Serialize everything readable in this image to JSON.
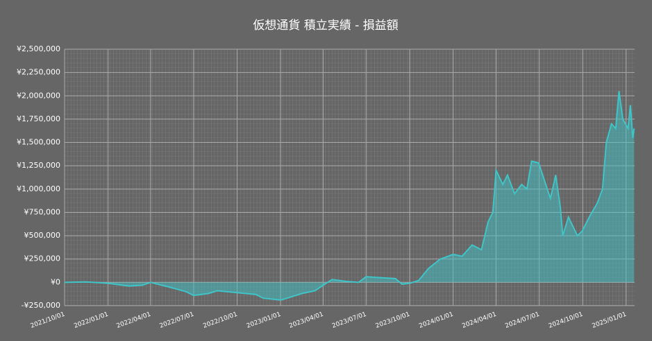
{
  "chart_data": {
    "type": "area",
    "title": "仮想通貨 積立実績 - 損益額",
    "x": [
      "2021/10/01",
      "2021/11/15",
      "2022/01/01",
      "2022/02/15",
      "2022/03/15",
      "2022/04/01",
      "2022/05/10",
      "2022/06/15",
      "2022/07/01",
      "2022/08/01",
      "2022/08/20",
      "2022/10/01",
      "2022/11/10",
      "2022/11/25",
      "2023/01/01",
      "2023/01/15",
      "2023/02/15",
      "2023/03/15",
      "2023/04/01",
      "2023/04/20",
      "2023/05/20",
      "2023/06/15",
      "2023/07/01",
      "2023/08/01",
      "2023/09/01",
      "2023/09/15",
      "2023/10/01",
      "2023/10/20",
      "2023/11/10",
      "2023/12/05",
      "2024/01/01",
      "2024/01/20",
      "2024/02/10",
      "2024/03/01",
      "2024/03/15",
      "2024/03/25",
      "2024/04/01",
      "2024/04/15",
      "2024/04/25",
      "2024/05/10",
      "2024/05/25",
      "2024/06/05",
      "2024/06/15",
      "2024/06/30",
      "2024/07/15",
      "2024/07/25",
      "2024/08/05",
      "2024/08/15",
      "2024/08/20",
      "2024/09/01",
      "2024/09/20",
      "2024/09/30",
      "2024/10/15",
      "2024/11/01",
      "2024/11/12",
      "2024/11/20",
      "2024/12/01",
      "2024/12/10",
      "2024/12/17",
      "2024/12/25",
      "2025/01/05",
      "2025/01/10",
      "2025/01/15",
      "2025/01/18"
    ],
    "values": [
      0,
      5000,
      -10000,
      -40000,
      -30000,
      0,
      -50000,
      -100000,
      -140000,
      -120000,
      -90000,
      -110000,
      -130000,
      -170000,
      -190000,
      -170000,
      -120000,
      -90000,
      -30000,
      30000,
      10000,
      0,
      60000,
      50000,
      40000,
      -20000,
      -10000,
      20000,
      150000,
      250000,
      300000,
      280000,
      400000,
      350000,
      650000,
      750000,
      1200000,
      1050000,
      1150000,
      950000,
      1050000,
      1000000,
      1300000,
      1280000,
      1050000,
      900000,
      1150000,
      800000,
      500000,
      700000,
      500000,
      550000,
      700000,
      850000,
      1000000,
      1500000,
      1700000,
      1650000,
      2050000,
      1750000,
      1650000,
      1900000,
      1550000,
      1650000
    ],
    "color": "#3fc4c8",
    "xlim": [
      "2021/10/01",
      "2025/01/19"
    ],
    "xticks": [
      "2021/10/01",
      "2022/01/01",
      "2022/04/01",
      "2022/07/01",
      "2022/10/01",
      "2023/01/01",
      "2023/04/01",
      "2023/07/01",
      "2023/10/01",
      "2024/01/01",
      "2024/04/01",
      "2024/07/01",
      "2024/10/01",
      "2025/01/01"
    ],
    "ylim": [
      -250000,
      2500000
    ],
    "yticks": [
      {
        "value": -250000,
        "label": "-¥250,000"
      },
      {
        "value": 0,
        "label": "¥0"
      },
      {
        "value": 250000,
        "label": "¥250,000"
      },
      {
        "value": 500000,
        "label": "¥500,000"
      },
      {
        "value": 750000,
        "label": "¥750,000"
      },
      {
        "value": 1000000,
        "label": "¥1,000,000"
      },
      {
        "value": 1250000,
        "label": "¥1,250,000"
      },
      {
        "value": 1500000,
        "label": "¥1,500,000"
      },
      {
        "value": 1750000,
        "label": "¥1,750,000"
      },
      {
        "value": 2000000,
        "label": "¥2,000,000"
      },
      {
        "value": 2250000,
        "label": "¥2,250,000"
      },
      {
        "value": 2500000,
        "label": "¥2,500,000"
      }
    ],
    "grid": true
  }
}
